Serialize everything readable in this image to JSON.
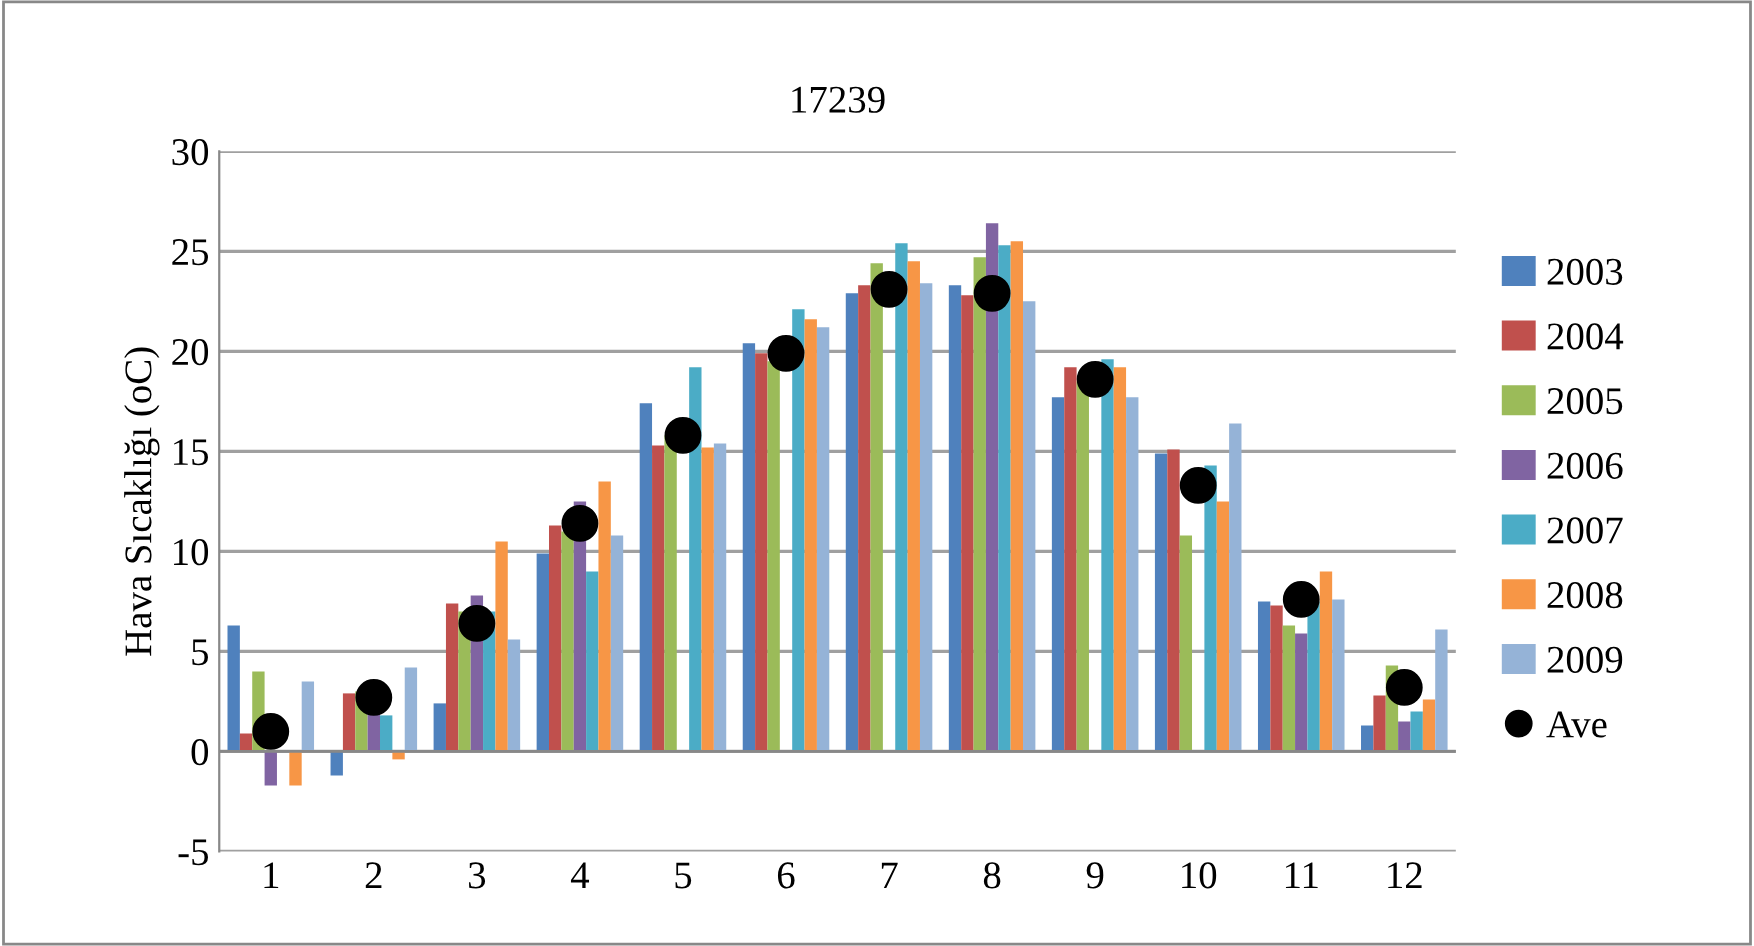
{
  "chart_data": {
    "type": "bar",
    "title": "17239",
    "ylabel": "Hava Sıcaklığı (oC)",
    "categories": [
      "1",
      "2",
      "3",
      "4",
      "5",
      "6",
      "7",
      "8",
      "9",
      "10",
      "11",
      "12"
    ],
    "series": [
      {
        "name": "2003",
        "color": "#4f81bd",
        "values": [
          6.3,
          -1.2,
          2.4,
          9.9,
          17.4,
          20.4,
          22.9,
          23.3,
          17.7,
          14.9,
          7.5,
          1.3
        ]
      },
      {
        "name": "2004",
        "color": "#c0504d",
        "values": [
          0.9,
          2.9,
          7.4,
          11.3,
          15.3,
          19.9,
          23.3,
          22.8,
          19.2,
          15.1,
          7.3,
          2.8
        ]
      },
      {
        "name": "2005",
        "color": "#9bbb59",
        "values": [
          4.0,
          3.0,
          7.0,
          11.0,
          15.8,
          19.5,
          24.4,
          24.7,
          18.5,
          10.8,
          6.3,
          4.3
        ]
      },
      {
        "name": "2006",
        "color": "#8064a2",
        "values": [
          -1.7,
          1.9,
          7.8,
          12.5,
          null,
          null,
          null,
          26.4,
          null,
          null,
          5.9,
          1.5
        ]
      },
      {
        "name": "2007",
        "color": "#4bacc6",
        "values": [
          0.0,
          1.8,
          7.0,
          9.0,
          19.2,
          22.1,
          25.4,
          25.3,
          19.6,
          14.3,
          7.5,
          2.0
        ]
      },
      {
        "name": "2008",
        "color": "#f79646",
        "values": [
          -1.7,
          -0.4,
          10.5,
          13.5,
          15.2,
          21.6,
          24.5,
          25.5,
          19.2,
          12.5,
          9.0,
          2.6
        ]
      },
      {
        "name": "2009",
        "color": "#95b3d7",
        "values": [
          3.5,
          4.2,
          5.6,
          10.8,
          15.4,
          21.2,
          23.4,
          22.5,
          17.7,
          16.4,
          7.6,
          6.1
        ]
      },
      {
        "name": "Ave",
        "type": "scatter",
        "marker": "circle",
        "color": "#000000",
        "x": [
          "1",
          "2",
          "3",
          "4",
          "5",
          "6",
          "7",
          "8",
          "9",
          "10",
          "11",
          "12"
        ],
        "values": [
          1.0,
          2.7,
          6.4,
          11.4,
          15.8,
          19.9,
          23.1,
          22.9,
          18.6,
          13.3,
          7.6,
          3.2
        ]
      }
    ],
    "ylim": [
      -5,
      30
    ],
    "yticks": [
      -5,
      0,
      5,
      10,
      15,
      20,
      25,
      30
    ],
    "grid": "y",
    "legend": "right"
  }
}
